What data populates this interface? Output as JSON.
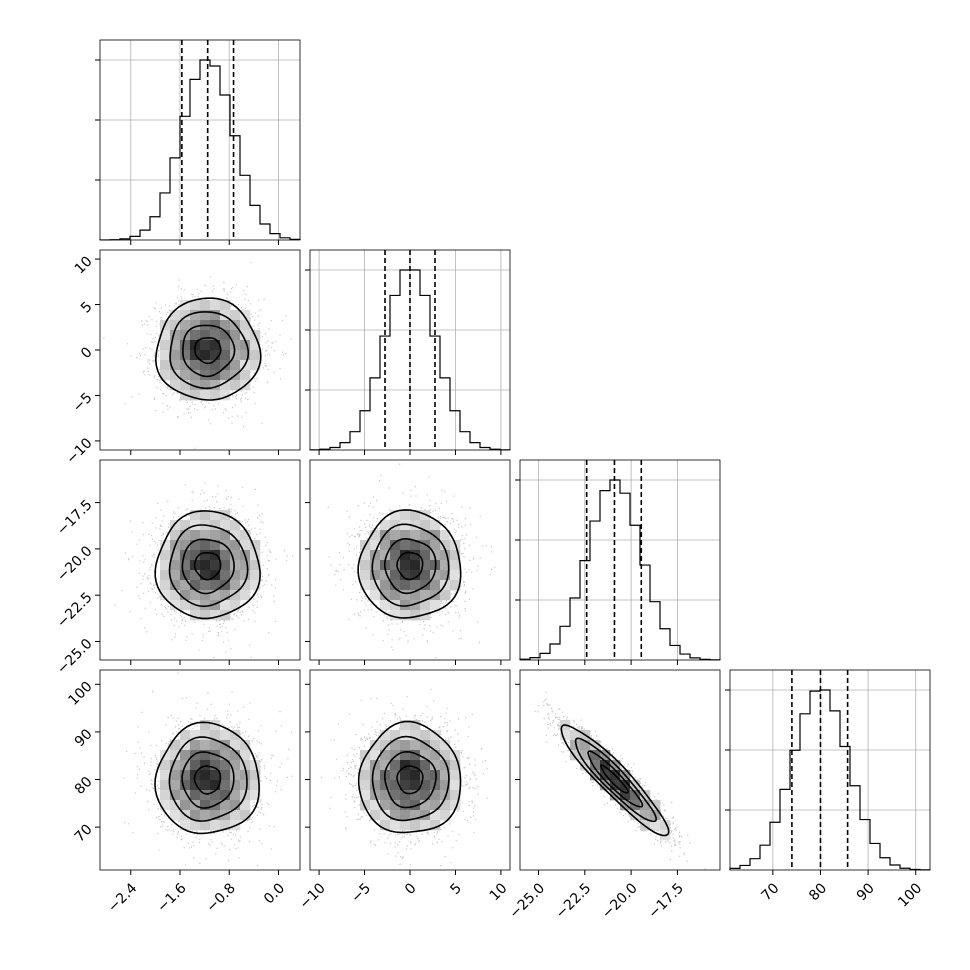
{
  "chart_data": {
    "type": "corner",
    "parameters": [
      {
        "tick_labels": [
          "−2.4",
          "−1.6",
          "−0.8",
          "0.0"
        ],
        "ticks": [
          -2.4,
          -1.6,
          -0.8,
          0.0
        ],
        "range": [
          -2.9,
          0.35
        ],
        "median": -1.15,
        "q16": -1.57,
        "q84": -0.73,
        "mean": -1.15,
        "sd": 0.42
      },
      {
        "tick_labels": [
          "−10",
          "−5",
          "0",
          "5",
          "10"
        ],
        "ticks": [
          -10,
          -5,
          0,
          5,
          10
        ],
        "range": [
          -11,
          11
        ],
        "median": 0.0,
        "q16": -2.75,
        "q84": 2.75,
        "mean": 0.0,
        "sd": 2.8
      },
      {
        "tick_labels": [
          "−25.0",
          "−22.5",
          "−20.0",
          "−17.5"
        ],
        "ticks": [
          -25.0,
          -22.5,
          -20.0,
          -17.5
        ],
        "range": [
          -26.0,
          -15.2
        ],
        "median": -20.9,
        "q16": -22.4,
        "q84": -19.45,
        "mean": -20.9,
        "sd": 1.45
      },
      {
        "tick_labels": [
          "70",
          "80",
          "90",
          "100"
        ],
        "ticks": [
          70,
          80,
          90,
          100
        ],
        "range": [
          61,
          103
        ],
        "median": 80.0,
        "q16": 74.0,
        "q84": 85.7,
        "mean": 80.0,
        "sd": 5.8
      }
    ],
    "correlations": [
      [
        1,
        0,
        0,
        0
      ],
      [
        0,
        1,
        0,
        0
      ],
      [
        0,
        0,
        1,
        -0.93
      ],
      [
        0,
        0,
        -0.93,
        1
      ]
    ],
    "histogram_bins": 20,
    "grid": true,
    "quantile_lines": "dashed"
  }
}
